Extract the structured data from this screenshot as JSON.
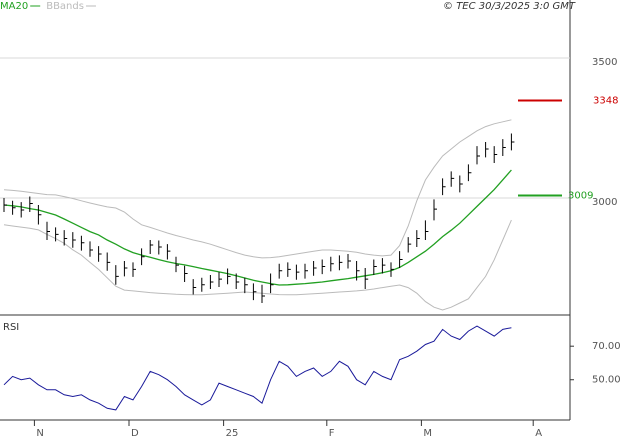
{
  "chart_data": [
    {
      "type": "ohlc",
      "copyright": "© TEC 30/3/2025 3:0 GMT",
      "categories": [
        null,
        null,
        null,
        null,
        "N",
        null,
        null,
        null,
        null,
        null,
        null,
        null,
        null,
        null,
        null,
        "D",
        null,
        null,
        null,
        null,
        null,
        null,
        null,
        null,
        null,
        null,
        "25",
        null,
        null,
        null,
        null,
        null,
        null,
        null,
        null,
        null,
        null,
        null,
        "F",
        null,
        null,
        null,
        null,
        null,
        null,
        null,
        null,
        null,
        null,
        "M",
        null,
        null,
        null,
        null,
        null,
        null,
        null,
        null,
        null,
        null,
        null,
        null,
        "A"
      ],
      "high": [
        3000,
        2990,
        2985,
        3005,
        2975,
        2915,
        2895,
        2885,
        2878,
        2865,
        2845,
        2828,
        2805,
        2760,
        2775,
        2770,
        2820,
        2850,
        2848,
        2835,
        2790,
        2758,
        2710,
        2715,
        2725,
        2735,
        2748,
        2730,
        2715,
        2695,
        2690,
        2730,
        2765,
        2770,
        2762,
        2765,
        2775,
        2780,
        2790,
        2795,
        2800,
        2775,
        2750,
        2780,
        2785,
        2770,
        2810,
        2860,
        2885,
        2920,
        2995,
        3070,
        3095,
        3080,
        3120,
        3185,
        3200,
        3185,
        3210,
        3230,
        null,
        null,
        null
      ],
      "low": [
        2950,
        2940,
        2930,
        2950,
        2905,
        2850,
        2845,
        2830,
        2822,
        2812,
        2790,
        2772,
        2740,
        2690,
        2720,
        2718,
        2760,
        2800,
        2798,
        2780,
        2735,
        2700,
        2655,
        2665,
        2675,
        2682,
        2692,
        2675,
        2660,
        2635,
        2625,
        2660,
        2712,
        2718,
        2708,
        2712,
        2722,
        2728,
        2738,
        2742,
        2748,
        2705,
        2675,
        2725,
        2730,
        2718,
        2750,
        2805,
        2825,
        2850,
        2920,
        3010,
        3040,
        3020,
        3060,
        3120,
        3145,
        3125,
        3150,
        3170,
        null,
        null,
        null
      ],
      "close": [
        2975,
        2965,
        2957,
        2980,
        2940,
        2880,
        2870,
        2855,
        2850,
        2840,
        2814,
        2800,
        2770,
        2720,
        2750,
        2745,
        2790,
        2832,
        2825,
        2810,
        2760,
        2730,
        2680,
        2690,
        2700,
        2710,
        2720,
        2700,
        2690,
        2665,
        2650,
        2690,
        2740,
        2745,
        2735,
        2740,
        2750,
        2755,
        2765,
        2770,
        2775,
        2740,
        2710,
        2755,
        2760,
        2745,
        2780,
        2835,
        2855,
        2880,
        2960,
        3040,
        3070,
        3050,
        3090,
        3150,
        3175,
        3155,
        3180,
        3200,
        null,
        null,
        null
      ],
      "color": "#000000",
      "series": [
        {
          "name": "MA20",
          "color": "#22a022",
          "values": [
            2975,
            2972,
            2968,
            2962,
            2957,
            2948,
            2939,
            2925,
            2910,
            2895,
            2880,
            2868,
            2850,
            2835,
            2818,
            2805,
            2796,
            2788,
            2780,
            2772,
            2766,
            2761,
            2755,
            2748,
            2742,
            2736,
            2730,
            2722,
            2714,
            2706,
            2700,
            2694,
            2689,
            2690,
            2692,
            2694,
            2697,
            2700,
            2704,
            2708,
            2712,
            2717,
            2722,
            2727,
            2733,
            2740,
            2752,
            2770,
            2790,
            2810,
            2835,
            2862,
            2885,
            2910,
            2940,
            2970,
            3000,
            3030,
            3065,
            3100,
            null,
            null,
            null
          ]
        },
        {
          "name": "BBands",
          "color": "#bbbbbb",
          "upper": [
            3029,
            3027,
            3024,
            3020,
            3016,
            3012,
            3011,
            3005,
            2998,
            2990,
            2982,
            2975,
            2968,
            2964,
            2950,
            2925,
            2904,
            2895,
            2885,
            2875,
            2866,
            2858,
            2850,
            2843,
            2835,
            2825,
            2815,
            2805,
            2796,
            2790,
            2786,
            2787,
            2790,
            2795,
            2800,
            2805,
            2810,
            2814,
            2814,
            2812,
            2810,
            2806,
            2800,
            2796,
            2793,
            2796,
            2830,
            2900,
            2990,
            3064,
            3110,
            3150,
            3175,
            3200,
            3220,
            3240,
            3255,
            3265,
            3272,
            3279,
            null,
            null,
            null
          ],
          "lower": [
            2904,
            2900,
            2896,
            2892,
            2886,
            2870,
            2855,
            2838,
            2815,
            2796,
            2770,
            2745,
            2715,
            2685,
            2671,
            2668,
            2665,
            2662,
            2660,
            2658,
            2656,
            2655,
            2654,
            2654,
            2656,
            2658,
            2660,
            2662,
            2664,
            2662,
            2660,
            2657,
            2655,
            2654,
            2654,
            2656,
            2658,
            2660,
            2662,
            2664,
            2666,
            2668,
            2671,
            2675,
            2680,
            2685,
            2689,
            2680,
            2660,
            2630,
            2610,
            2600,
            2610,
            2625,
            2640,
            2680,
            2720,
            2779,
            2850,
            2921,
            null,
            null,
            null
          ]
        }
      ],
      "levels": [
        {
          "value": 3348,
          "color": "#cc0000"
        },
        {
          "value": 3009,
          "color": "#22a022"
        }
      ],
      "ylim": [
        2582,
        3707
      ],
      "yticks": [
        3000,
        3500
      ],
      "grid": true
    },
    {
      "type": "line",
      "title": "RSI",
      "color": "#1a1a9a",
      "values": [
        47,
        52,
        50,
        51,
        47,
        44,
        44,
        41,
        40,
        41,
        38,
        36,
        33,
        32,
        40,
        38,
        46,
        55,
        53,
        50,
        46,
        41,
        38,
        35,
        38,
        48,
        46,
        44,
        42,
        40,
        36,
        50,
        61,
        58,
        52,
        55,
        57,
        52,
        55,
        61,
        58,
        50,
        47,
        55,
        52,
        50,
        62,
        64,
        67,
        71,
        73,
        80,
        76,
        74,
        79,
        82,
        79,
        76,
        80,
        81,
        null,
        null,
        null
      ],
      "ylim": [
        26,
        88
      ],
      "yticks": [
        {
          "value": 70,
          "label": "70.00"
        },
        {
          "value": 50,
          "label": "50.00"
        }
      ]
    }
  ]
}
